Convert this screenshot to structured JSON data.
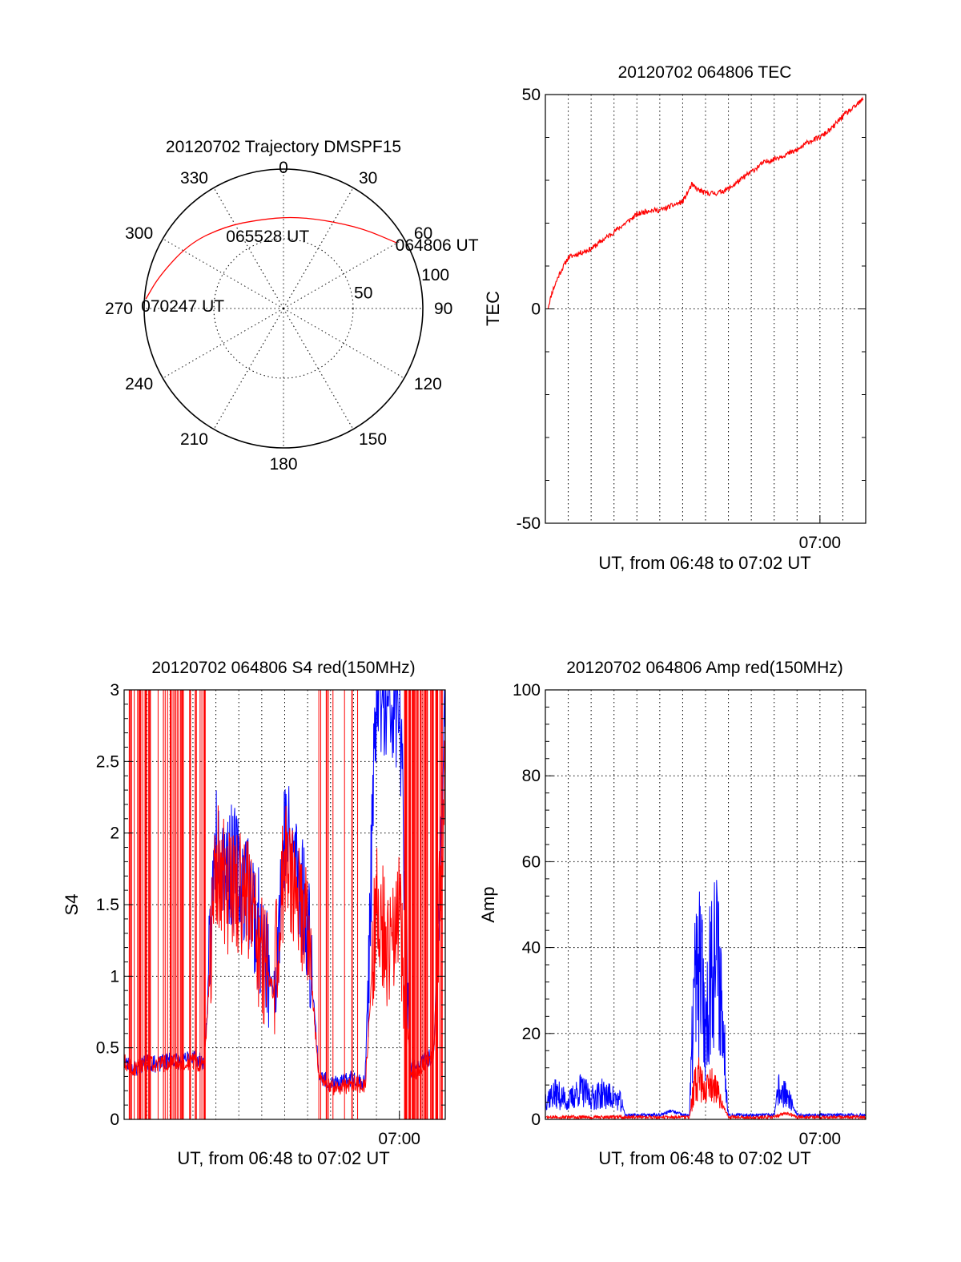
{
  "chart_data": [
    {
      "type": "polar-trajectory",
      "title": "20120702 Trajectory DMSPF15",
      "azimuth_labels": [
        "0",
        "30",
        "60",
        "90",
        "120",
        "150",
        "180",
        "210",
        "240",
        "270",
        "300",
        "330"
      ],
      "azimuth_values": [
        0,
        30,
        60,
        90,
        120,
        150,
        180,
        210,
        240,
        270,
        300,
        330
      ],
      "ring_labels": [
        "50",
        "100"
      ],
      "ring_values": [
        50,
        100
      ],
      "radius_max": 100,
      "trajectory_color": "#ff0000",
      "trajectory": [
        {
          "az": 60,
          "r": 94
        },
        {
          "az": 45,
          "r": 81
        },
        {
          "az": 25,
          "r": 70
        },
        {
          "az": 5,
          "r": 66
        },
        {
          "az": -15,
          "r": 66
        },
        {
          "az": -35,
          "r": 72
        },
        {
          "az": -55,
          "r": 82
        },
        {
          "az": -75,
          "r": 92
        },
        {
          "az": -86,
          "r": 99
        }
      ],
      "time_labels": [
        {
          "text": "064806 UT",
          "az": 60,
          "r": 94
        },
        {
          "text": "065528 UT",
          "az": -15,
          "r": 66
        },
        {
          "text": "070247 UT",
          "az": -86,
          "r": 99
        }
      ]
    },
    {
      "type": "line",
      "title": "20120702 064806 TEC",
      "ylabel": "TEC",
      "xlabel": "UT, from 06:48 to 07:02 UT",
      "ylim": [
        -50,
        50
      ],
      "yticks": [
        "-50",
        "0",
        "50"
      ],
      "ytick_values": [
        -50,
        0,
        50
      ],
      "xlim": [
        48.0,
        62.0
      ],
      "xtick_labels": [
        "07:00"
      ],
      "xtick_values": [
        60.0
      ],
      "series": [
        {
          "color": "#ff0000",
          "x": [
            48.1,
            48.3,
            48.6,
            49.0,
            49.5,
            50.0,
            50.5,
            51.0,
            51.5,
            52.0,
            52.5,
            53.0,
            53.5,
            54.0,
            54.4,
            54.6,
            55.0,
            55.5,
            56.0,
            56.5,
            57.0,
            57.5,
            58.0,
            58.5,
            59.0,
            59.5,
            60.0,
            60.5,
            61.0,
            61.5,
            61.9
          ],
          "y": [
            0,
            4,
            8,
            12,
            13,
            14,
            16,
            18,
            20,
            22,
            23,
            23,
            24,
            25,
            29,
            28,
            27,
            27,
            28,
            30,
            32,
            34,
            35,
            36,
            37,
            39,
            40,
            42,
            45,
            47,
            49
          ]
        }
      ]
    },
    {
      "type": "line",
      "title": "20120702 064806 S4 red(150MHz)",
      "ylabel": "S4",
      "xlabel": "UT, from 06:48 to 07:02 UT",
      "ylim": [
        0,
        3
      ],
      "yticks": [
        "0",
        "0.5",
        "1",
        "1.5",
        "2",
        "2.5",
        "3"
      ],
      "ytick_values": [
        0,
        0.5,
        1,
        1.5,
        2,
        2.5,
        3
      ],
      "xlim": [
        48.0,
        62.0
      ],
      "xtick_labels": [
        "07:00"
      ],
      "xtick_values": [
        60.0
      ],
      "series": [
        {
          "color": "#0000ff",
          "x": [
            48.0,
            48.5,
            49.0,
            49.5,
            50.0,
            50.5,
            51.0,
            51.5,
            52.0,
            52.5,
            53.0,
            53.5,
            54.0,
            54.5,
            55.0,
            55.5,
            56.0,
            56.5,
            57.0,
            57.5,
            58.0,
            58.5,
            59.0,
            59.5,
            60.0,
            60.5,
            61.0,
            61.5,
            62.0
          ],
          "y": [
            0.4,
            0.35,
            0.4,
            0.38,
            0.42,
            0.4,
            0.45,
            0.38,
            2.0,
            1.8,
            1.7,
            1.6,
            1.2,
            0.9,
            2.0,
            1.8,
            1.4,
            0.3,
            0.25,
            0.25,
            0.3,
            0.25,
            3.0,
            2.8,
            2.9,
            0.35,
            0.4,
            0.45,
            3.0
          ]
        },
        {
          "color": "#ff0000",
          "x": [
            48.0,
            48.5,
            49.0,
            49.5,
            50.0,
            50.5,
            51.0,
            51.5,
            52.0,
            52.5,
            53.0,
            53.5,
            54.0,
            54.5,
            55.0,
            55.5,
            56.0,
            56.5,
            57.0,
            57.5,
            58.0,
            58.5,
            59.0,
            59.5,
            60.0,
            60.5,
            61.0,
            61.5,
            62.0
          ],
          "y": [
            0.4,
            0.35,
            0.4,
            0.38,
            0.4,
            0.4,
            0.4,
            0.38,
            1.8,
            1.6,
            1.6,
            1.5,
            1.1,
            0.9,
            1.8,
            1.6,
            1.3,
            0.28,
            0.22,
            0.22,
            0.26,
            0.22,
            1.5,
            1.2,
            1.4,
            0.3,
            0.38,
            0.45,
            2.5
          ]
        }
      ]
    },
    {
      "type": "line",
      "title": "20120702 064806 Amp red(150MHz)",
      "ylabel": "Amp",
      "xlabel": "UT, from 06:48 to 07:02 UT",
      "ylim": [
        0,
        100
      ],
      "yticks": [
        "0",
        "20",
        "40",
        "60",
        "80",
        "100"
      ],
      "ytick_values": [
        0,
        20,
        40,
        60,
        80,
        100
      ],
      "xlim": [
        48.0,
        62.0
      ],
      "xtick_labels": [
        "07:00"
      ],
      "xtick_values": [
        60.0
      ],
      "series": [
        {
          "color": "#0000ff",
          "x": [
            48.0,
            48.5,
            49.0,
            49.5,
            50.0,
            50.5,
            51.0,
            51.3,
            51.5,
            52.0,
            52.5,
            53.0,
            53.5,
            54.0,
            54.3,
            54.5,
            54.8,
            55.0,
            55.3,
            55.6,
            56.0,
            56.5,
            57.0,
            57.5,
            58.0,
            58.2,
            58.5,
            58.8,
            59.0,
            59.5,
            60.0,
            60.5,
            61.0,
            61.5,
            62.0
          ],
          "y": [
            5,
            6,
            4,
            7,
            5,
            6,
            5,
            4,
            1,
            1,
            1,
            1,
            2,
            1,
            1,
            30,
            35,
            20,
            40,
            35,
            1,
            1,
            1,
            1,
            1,
            7,
            6,
            3,
            1,
            1,
            1,
            1,
            1,
            1,
            1
          ]
        },
        {
          "color": "#ff0000",
          "x": [
            48.0,
            49.0,
            50.0,
            51.0,
            52.0,
            53.0,
            54.0,
            54.3,
            54.5,
            54.8,
            55.0,
            55.3,
            55.6,
            56.0,
            57.0,
            58.0,
            58.5,
            58.8,
            59.0,
            60.0,
            61.0,
            62.0
          ],
          "y": [
            0.5,
            0.5,
            0.5,
            0.5,
            0.5,
            0.5,
            0.5,
            0.5,
            8,
            10,
            6,
            8,
            5,
            0.5,
            0.5,
            0.5,
            1.5,
            1,
            0.5,
            0.5,
            0.5,
            0.5
          ]
        }
      ]
    }
  ]
}
